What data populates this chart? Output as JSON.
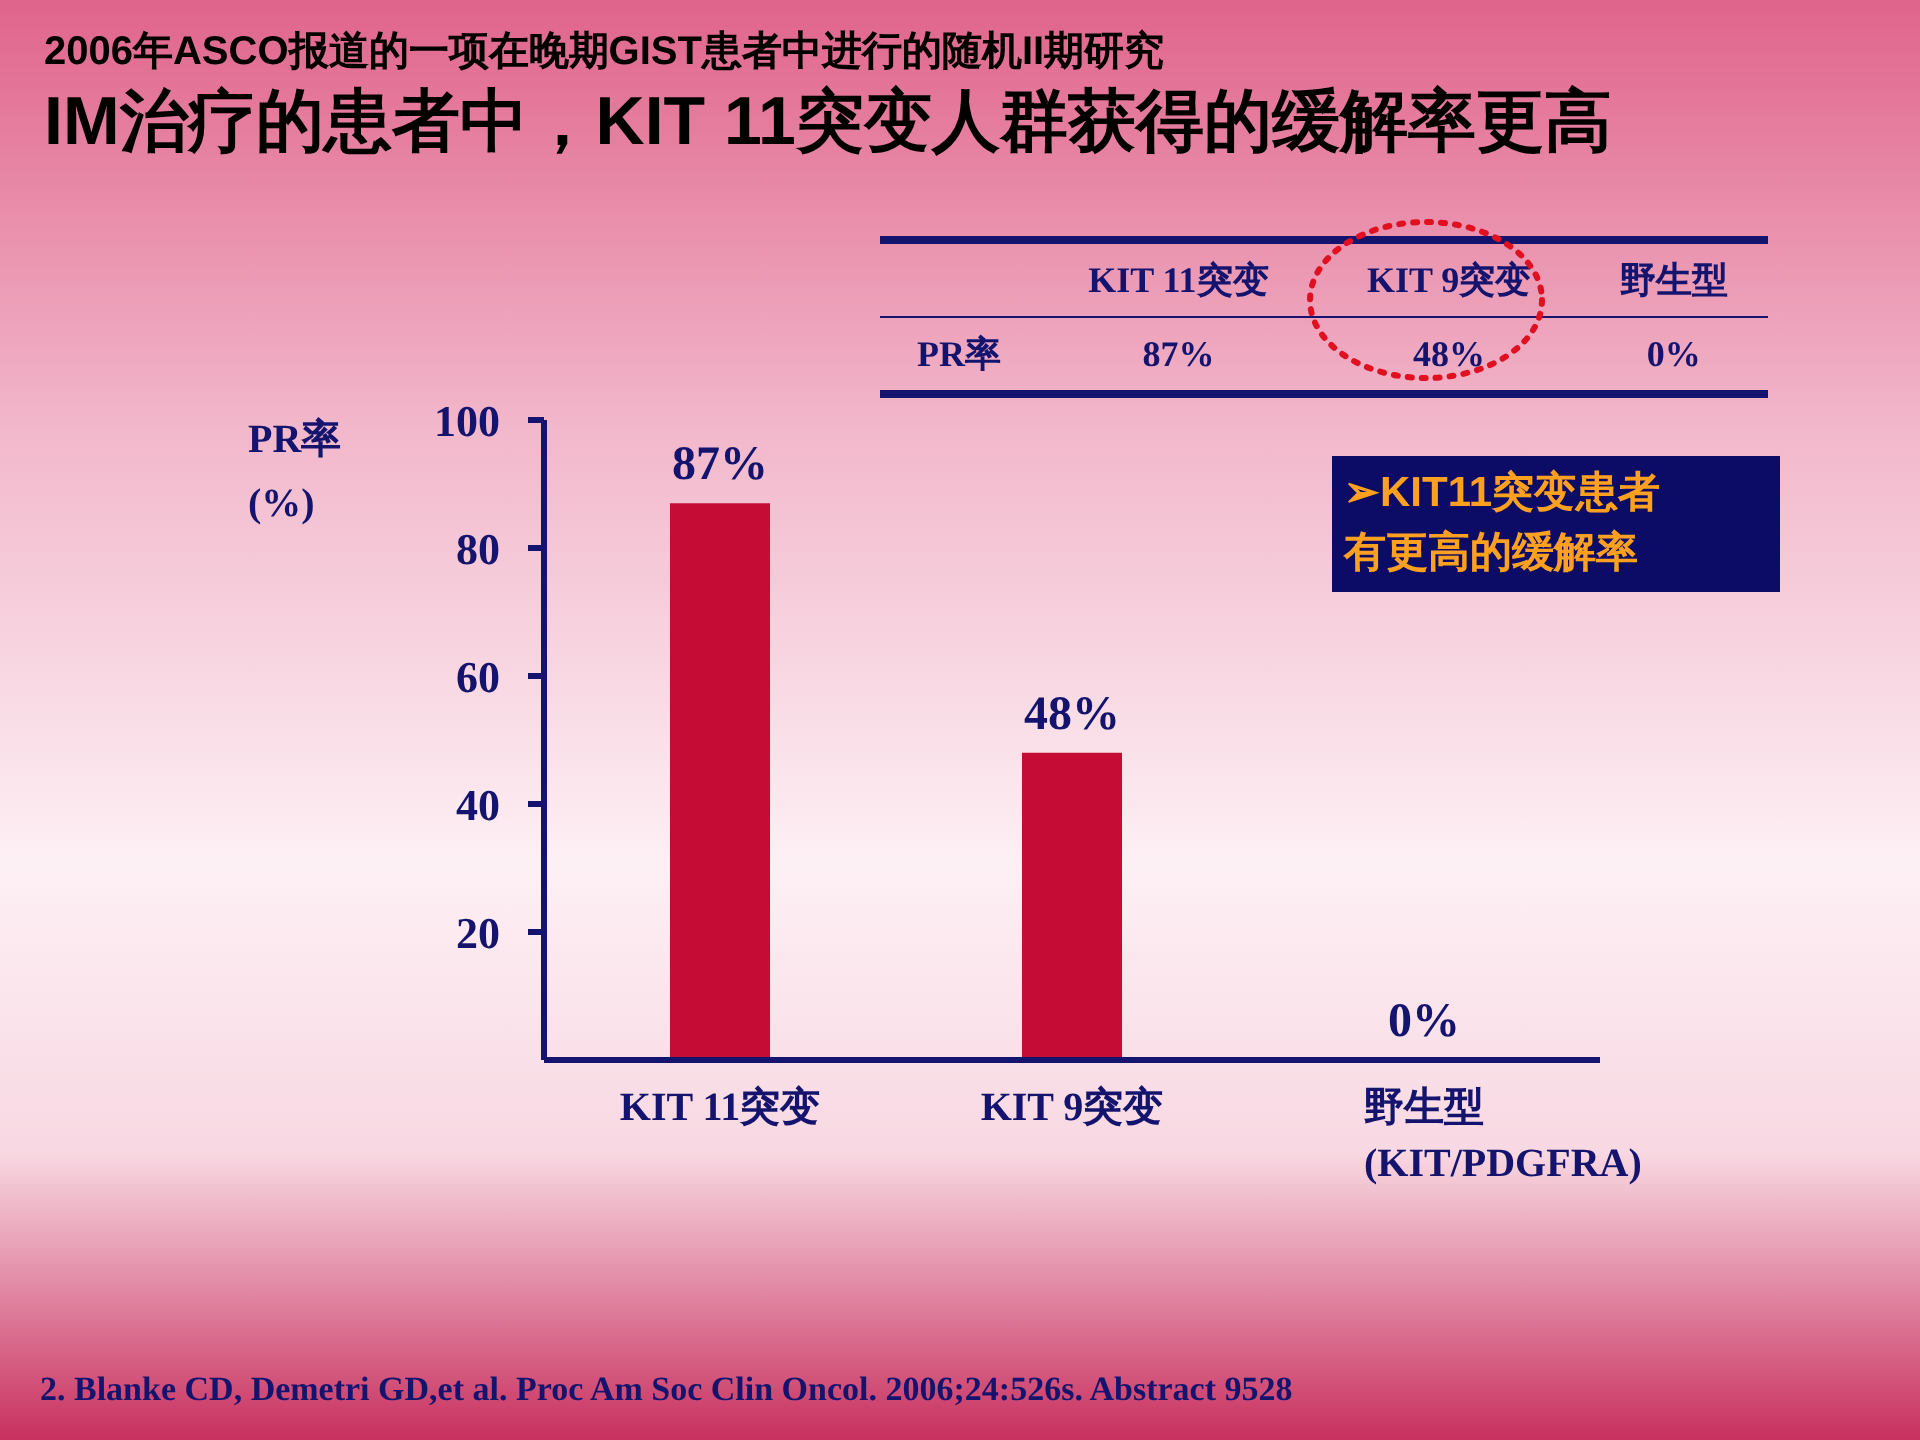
{
  "chart_data": {
    "type": "bar",
    "subtitle": "2006年ASCO报道的一项在晚期GIST患者中进行的随机II期研究",
    "title": "IM治疗的患者中，KIT 11突变人群获得的缓解率更高",
    "ylabel": "PR率\n(%)",
    "categories": [
      "KIT 11突变",
      "KIT 9突变",
      "野生型\n(KIT/PDGFRA)"
    ],
    "values": [
      87,
      48,
      0
    ],
    "color": "#c40c34",
    "value_labels": [
      "87%",
      "48%",
      null
    ],
    "ylim": [
      0,
      100
    ],
    "yticks": [
      20,
      40,
      60,
      80,
      100
    ],
    "grid": false,
    "legend": false,
    "annotations": [
      "KIT 11突变",
      "KIT 9突变",
      "野生型",
      "PR率",
      "87%",
      "48%",
      "0%",
      "➢KIT11突变患者有更高的缓解率",
      {
        "text": "0%",
        "x": "野生型\n(KIT/PDGFRA)",
        "y": 0
      },
      "2. Blanke CD, Demetri GD,et al. Proc Am Soc Clin Oncol. 2006;24:526s. Abstract 9528"
    ]
  }
}
